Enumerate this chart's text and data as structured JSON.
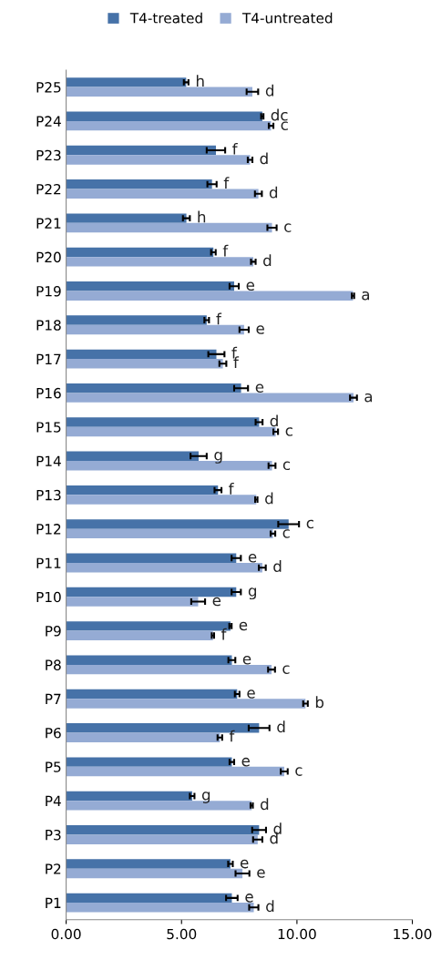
{
  "chart_data": {
    "type": "bar",
    "orientation": "horizontal",
    "legend": "top",
    "grid": false,
    "categories": [
      "P25",
      "P24",
      "P23",
      "P22",
      "P21",
      "P20",
      "P19",
      "P18",
      "P17",
      "P16",
      "P15",
      "P14",
      "P13",
      "P12",
      "P11",
      "P10",
      "P9",
      "P8",
      "P7",
      "P6",
      "P5",
      "P4",
      "P3",
      "P2",
      "P1"
    ],
    "xlim": [
      0,
      15
    ],
    "xticks": [
      {
        "value": 0,
        "label": "0.00"
      },
      {
        "value": 5,
        "label": "5.00"
      },
      {
        "value": 10,
        "label": "10.00"
      },
      {
        "value": 15,
        "label": "15.00"
      }
    ],
    "series": [
      {
        "name": "T4-treated",
        "color": "#4672a8",
        "values": [
          5.2,
          8.5,
          6.49,
          6.32,
          5.21,
          6.38,
          7.28,
          6.09,
          6.51,
          7.58,
          8.36,
          5.74,
          6.58,
          9.64,
          7.37,
          7.37,
          7.12,
          7.18,
          7.41,
          8.36,
          7.18,
          5.46,
          8.36,
          7.12,
          7.18
        ],
        "errors": [
          0.1,
          0.05,
          0.4,
          0.2,
          0.15,
          0.1,
          0.2,
          0.1,
          0.35,
          0.3,
          0.15,
          0.35,
          0.15,
          0.45,
          0.2,
          0.2,
          0.05,
          0.15,
          0.1,
          0.45,
          0.1,
          0.1,
          0.3,
          0.1,
          0.25
        ],
        "value_labels": [
          "h",
          "dc",
          "f",
          "f",
          "h",
          "f",
          "e",
          "f",
          "f",
          "e",
          "d",
          "g",
          "f",
          "c",
          "e",
          "g",
          "e",
          "e",
          "e",
          "d",
          "e",
          "g",
          "d",
          "e",
          "e"
        ]
      },
      {
        "name": "T4-untreated",
        "color": "#95abd4",
        "values": [
          8.07,
          8.88,
          7.97,
          8.33,
          8.92,
          8.11,
          12.43,
          7.71,
          6.79,
          12.45,
          9.08,
          8.92,
          8.24,
          8.96,
          8.5,
          5.72,
          6.36,
          8.9,
          10.37,
          6.66,
          9.45,
          8.04,
          8.3,
          7.64,
          8.13
        ],
        "errors": [
          0.25,
          0.1,
          0.1,
          0.15,
          0.2,
          0.1,
          0.05,
          0.2,
          0.15,
          0.15,
          0.1,
          0.15,
          0.05,
          0.1,
          0.15,
          0.3,
          0.05,
          0.15,
          0.1,
          0.1,
          0.15,
          0.05,
          0.2,
          0.3,
          0.2
        ],
        "value_labels": [
          "d",
          "c",
          "d",
          "d",
          "c",
          "d",
          "a",
          "e",
          "f",
          "a",
          "c",
          "c",
          "d",
          "c",
          "d",
          "e",
          "f",
          "c",
          "b",
          "f",
          "c",
          "d",
          "d",
          "e",
          "d"
        ]
      }
    ]
  }
}
